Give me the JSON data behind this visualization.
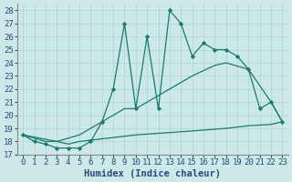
{
  "xlabel": "Humidex (Indice chaleur)",
  "bg_color": "#cce8e8",
  "line_color": "#1a7a6e",
  "xlim": [
    -0.5,
    23.5
  ],
  "ylim": [
    17,
    28.5
  ],
  "yticks": [
    17,
    18,
    19,
    20,
    21,
    22,
    23,
    24,
    25,
    26,
    27,
    28
  ],
  "xticks": [
    0,
    1,
    2,
    3,
    4,
    5,
    6,
    7,
    8,
    9,
    10,
    11,
    12,
    13,
    14,
    15,
    16,
    17,
    18,
    19,
    20,
    21,
    22,
    23
  ],
  "spiky_x": [
    0,
    1,
    2,
    3,
    4,
    5,
    6,
    7,
    8,
    9,
    10,
    11,
    12,
    13,
    14,
    15,
    16,
    17,
    18,
    19,
    20,
    21,
    22,
    23
  ],
  "spiky_y": [
    18.5,
    18.0,
    17.8,
    17.5,
    17.5,
    17.5,
    18.0,
    19.5,
    22.0,
    27.0,
    20.5,
    26.0,
    20.5,
    28.0,
    27.0,
    24.5,
    25.5,
    25.0,
    25.0,
    24.5,
    23.5,
    20.5,
    21.0,
    19.5
  ],
  "smooth_x": [
    0,
    3,
    5,
    7,
    9,
    10,
    11,
    13,
    15,
    17,
    18,
    20,
    22,
    23
  ],
  "smooth_y": [
    18.5,
    18.0,
    18.5,
    19.5,
    20.5,
    20.5,
    21.0,
    22.0,
    23.0,
    23.8,
    24.0,
    23.5,
    21.0,
    19.5
  ],
  "flat_x": [
    0,
    2,
    3,
    4,
    5,
    10,
    15,
    18,
    20,
    22,
    23
  ],
  "flat_y": [
    18.5,
    18.0,
    18.0,
    17.8,
    18.0,
    18.5,
    18.8,
    19.0,
    19.2,
    19.3,
    19.5
  ],
  "grid_color": "#aad4d4",
  "tick_color": "#2a4a7a",
  "fontsize": 7.5
}
